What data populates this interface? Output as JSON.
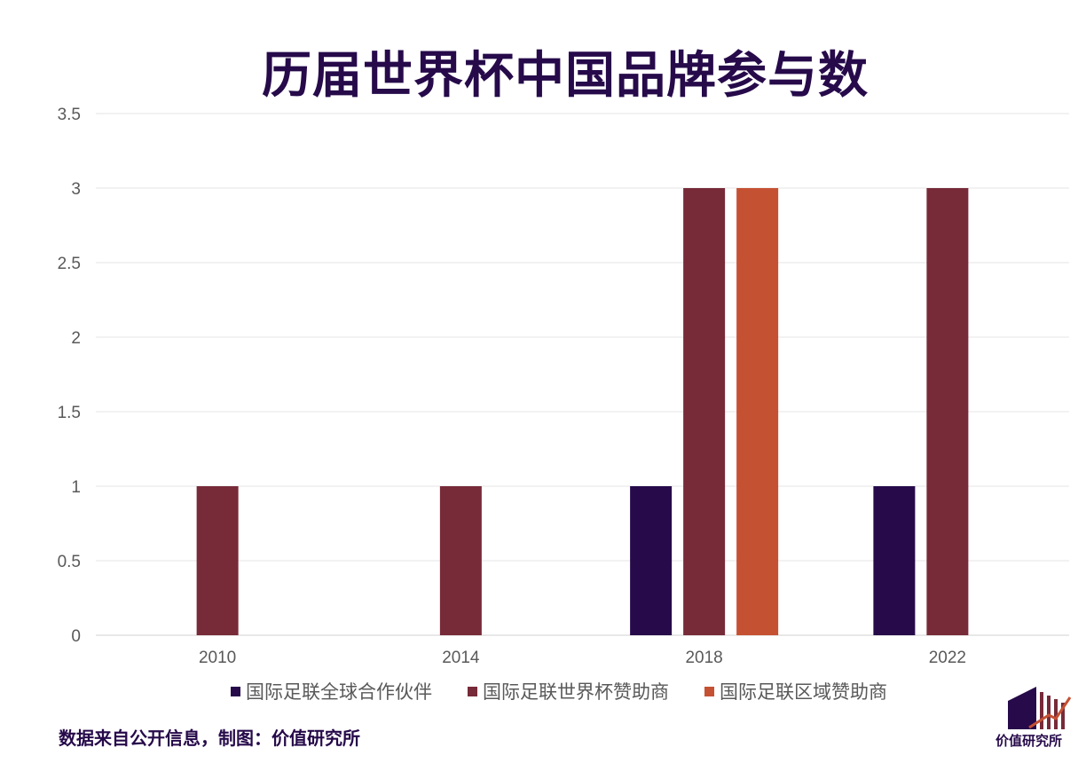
{
  "chart_data": {
    "type": "bar",
    "title": "历届世界杯中国品牌参与数",
    "categories": [
      "2010",
      "2014",
      "2018",
      "2022"
    ],
    "series": [
      {
        "name": "国际足联全球合作伙伴",
        "color": "#260a4a",
        "values": [
          0,
          0,
          1,
          1
        ]
      },
      {
        "name": "国际足联世界杯赞助商",
        "color": "#772a38",
        "values": [
          1,
          1,
          3,
          3
        ]
      },
      {
        "name": "国际足联区域赞助商",
        "color": "#c55133",
        "values": [
          0,
          0,
          3,
          0
        ]
      }
    ],
    "yticks": [
      "0",
      "0.5",
      "1",
      "1.5",
      "2",
      "2.5",
      "3",
      "3.5"
    ],
    "ylim": [
      0,
      3.5
    ],
    "xlabel": "",
    "ylabel": "",
    "legend_position": "bottom",
    "grid": true
  },
  "footer": {
    "source": "数据来自公开信息，制图：价值研究所",
    "logo_text": "价值研究所"
  }
}
